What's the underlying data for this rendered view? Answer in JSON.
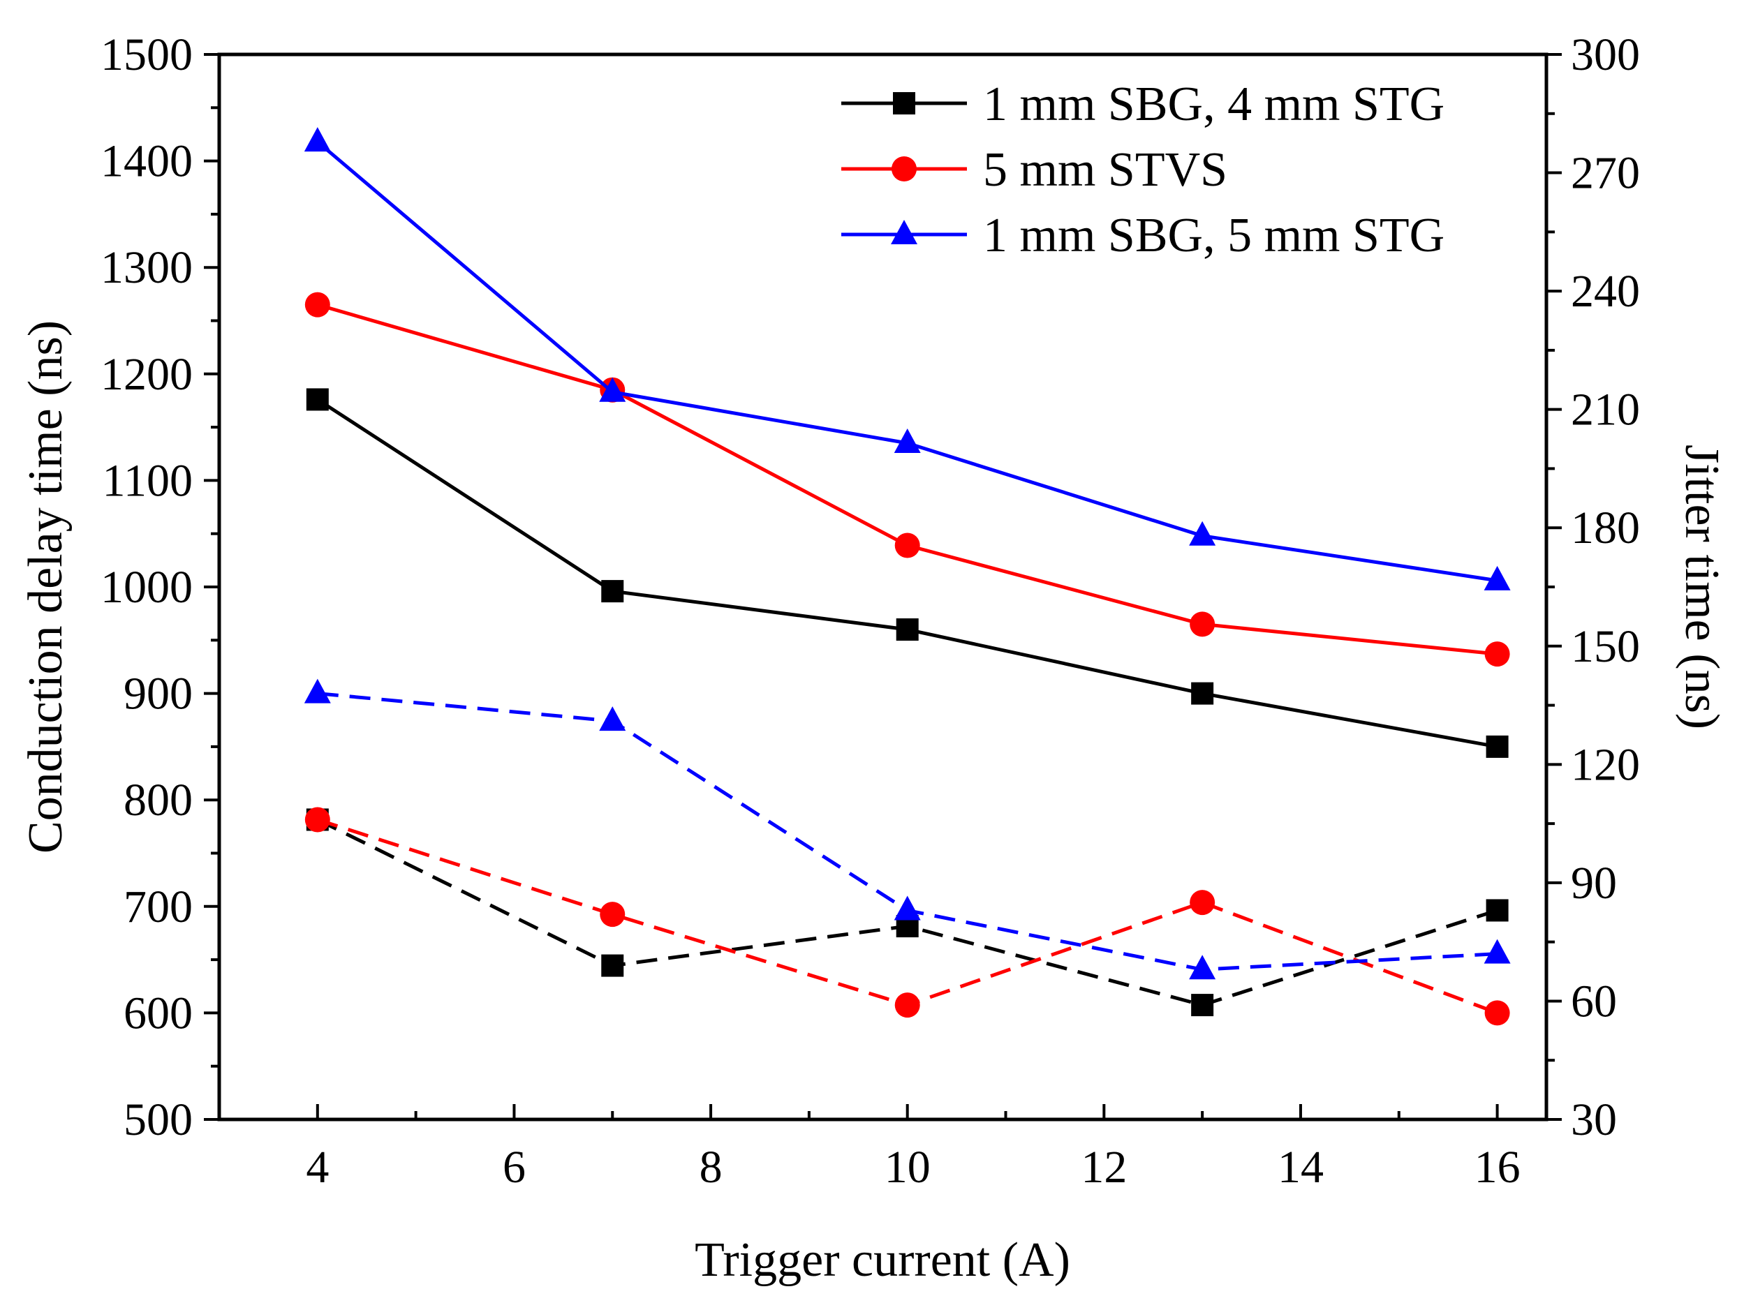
{
  "chart_data": {
    "type": "line",
    "title": "",
    "xlabel": "Trigger current (A)",
    "ylabel": "Conduction delay time (ns)",
    "y2label": "Jitter time (ns)",
    "xlim": [
      3,
      16.5
    ],
    "ylim": [
      500,
      1500
    ],
    "y2lim": [
      30,
      300
    ],
    "xticks": [
      4,
      6,
      8,
      10,
      12,
      14,
      16
    ],
    "yticks": [
      500,
      600,
      700,
      800,
      900,
      1000,
      1100,
      1200,
      1300,
      1400,
      1500
    ],
    "y2ticks": [
      30,
      60,
      90,
      120,
      150,
      180,
      210,
      240,
      270,
      300
    ],
    "x": [
      4,
      7,
      10,
      13,
      16
    ],
    "legend_position": "top-right",
    "series": [
      {
        "name": "1 mm SBG, 4 mm STG",
        "metric": "delay",
        "axis": "left",
        "color": "#000000",
        "marker": "square",
        "dash": "solid",
        "values": [
          1176,
          996,
          960,
          900,
          850
        ]
      },
      {
        "name": "5 mm STVS",
        "metric": "delay",
        "axis": "left",
        "color": "#ff0000",
        "marker": "circle",
        "dash": "solid",
        "values": [
          1265,
          1185,
          1039,
          965,
          937
        ]
      },
      {
        "name": "1 mm SBG, 5 mm STG",
        "metric": "delay",
        "axis": "left",
        "color": "#0000ff",
        "marker": "triangle",
        "dash": "solid",
        "values": [
          1418,
          1183,
          1135,
          1048,
          1006
        ]
      },
      {
        "name": "1 mm SBG, 4 mm STG",
        "metric": "jitter",
        "axis": "right",
        "color": "#000000",
        "marker": "square",
        "dash": "dashed",
        "values": [
          106,
          69,
          79,
          59,
          83
        ]
      },
      {
        "name": "5 mm STVS",
        "metric": "jitter",
        "axis": "right",
        "color": "#ff0000",
        "marker": "circle",
        "dash": "dashed",
        "values": [
          106,
          82,
          59,
          85,
          57
        ]
      },
      {
        "name": "1 mm SBG, 5 mm STG",
        "metric": "jitter",
        "axis": "right",
        "color": "#0000ff",
        "marker": "triangle",
        "dash": "dashed",
        "values": [
          138,
          131,
          83,
          68,
          72
        ]
      }
    ]
  }
}
